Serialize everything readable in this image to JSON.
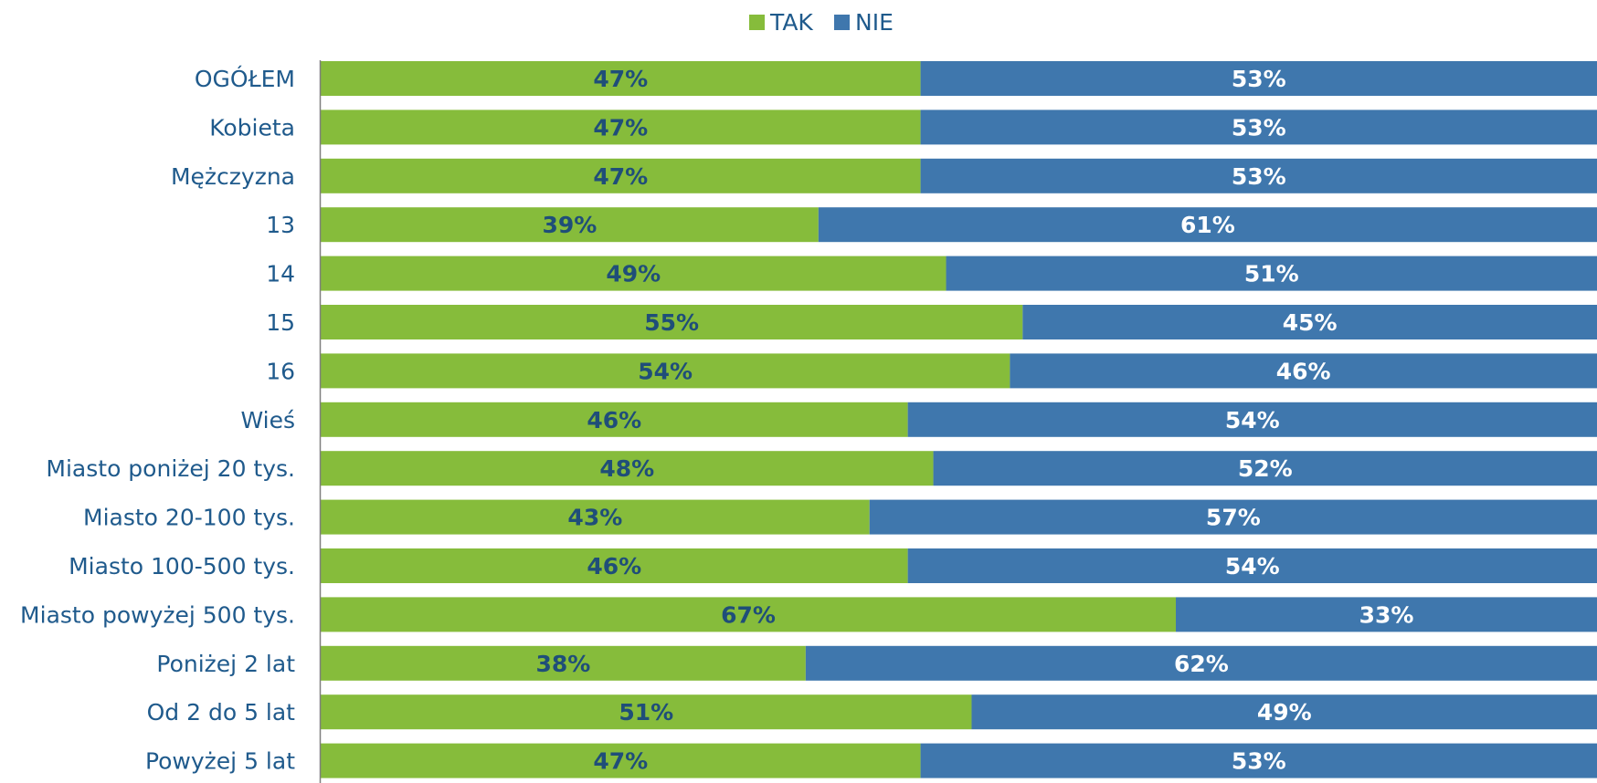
{
  "colors": {
    "tak": "#86bc3b",
    "nie": "#3f77ad",
    "tak_label": "#1f4e79",
    "nie_label": "#ffffff",
    "text": "#1f5a8c",
    "axis": "#7f7f7f"
  },
  "chart_data": {
    "type": "bar",
    "orientation": "horizontal",
    "stacked": true,
    "percent_stacked": true,
    "legend_position": "top",
    "grid": false,
    "xlim": [
      0,
      100
    ],
    "legend": [
      "TAK",
      "NIE"
    ],
    "categories": [
      "OGÓŁEM",
      "Kobieta",
      "Mężczyzna",
      "13",
      "14",
      "15",
      "16",
      "Wieś",
      "Miasto poniżej 20 tys.",
      "Miasto 20-100 tys.",
      "Miasto 100-500 tys.",
      "Miasto powyżej 500 tys.",
      "Poniżej 2 lat",
      "Od 2 do 5 lat",
      "Powyżej 5 lat"
    ],
    "series": [
      {
        "name": "TAK",
        "values": [
          47,
          47,
          47,
          39,
          49,
          55,
          54,
          46,
          48,
          43,
          46,
          67,
          38,
          51,
          47
        ]
      },
      {
        "name": "NIE",
        "values": [
          53,
          53,
          53,
          61,
          51,
          45,
          46,
          54,
          52,
          57,
          54,
          33,
          62,
          49,
          53
        ]
      }
    ],
    "value_labels": {
      "TAK": [
        "47%",
        "47%",
        "47%",
        "39%",
        "49%",
        "55%",
        "54%",
        "46%",
        "48%",
        "43%",
        "46%",
        "67%",
        "38%",
        "51%",
        "47%"
      ],
      "NIE": [
        "53%",
        "53%",
        "53%",
        "61%",
        "51%",
        "45%",
        "46%",
        "54%",
        "52%",
        "57%",
        "54%",
        "33%",
        "62%",
        "49%",
        "53%"
      ]
    }
  }
}
